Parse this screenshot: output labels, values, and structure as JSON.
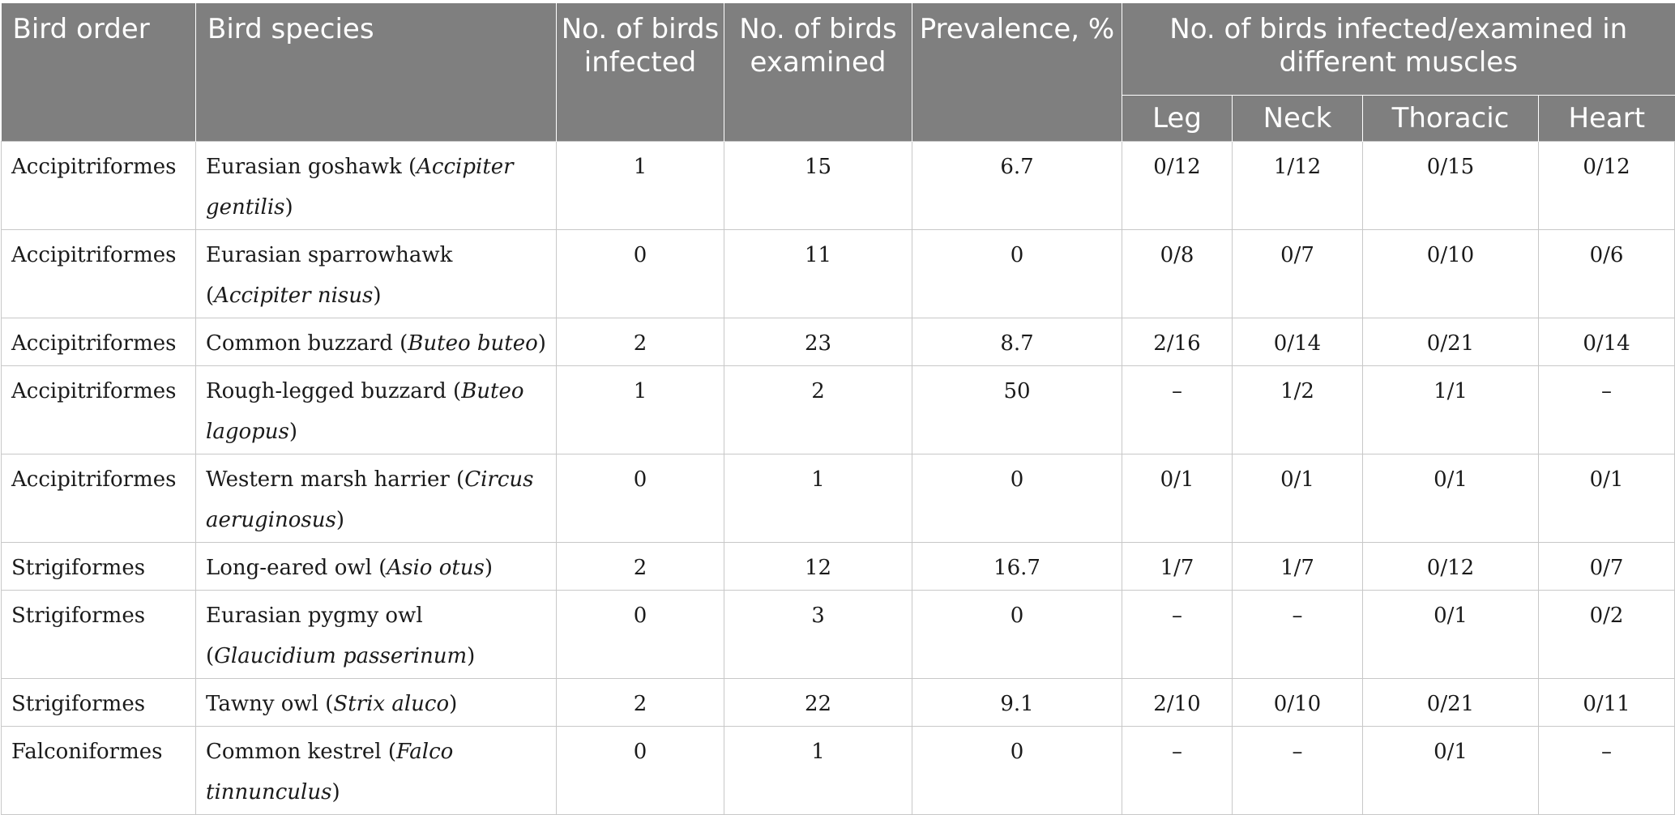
{
  "header": {
    "bird_order": "Bird order",
    "bird_species": "Bird species",
    "no_infected": "No. of birds infected",
    "no_examined": "No. of birds examined",
    "prevalence": "Prevalence, %",
    "muscles_group": "No. of birds infected/examined in different muscles",
    "leg": "Leg",
    "neck": "Neck",
    "thoracic": "Thoracic",
    "heart": "Heart"
  },
  "rows": [
    {
      "order": "Accipitriformes",
      "common": "Eurasian goshawk (",
      "sci": "Accipiter gentilis",
      "close": ")",
      "infected": "1",
      "examined": "15",
      "prevalence": "6.7",
      "leg": "0/12",
      "neck": "1/12",
      "thoracic": "0/15",
      "heart": "0/12"
    },
    {
      "order": "Accipitriformes",
      "common": "Eurasian sparrowhawk (",
      "sci": "Accipiter nisus",
      "close": ")",
      "infected": "0",
      "examined": "11",
      "prevalence": "0",
      "leg": "0/8",
      "neck": "0/7",
      "thoracic": "0/10",
      "heart": "0/6"
    },
    {
      "order": "Accipitriformes",
      "common": "Common buzzard (",
      "sci": "Buteo buteo",
      "close": ")",
      "infected": "2",
      "examined": "23",
      "prevalence": "8.7",
      "leg": "2/16",
      "neck": "0/14",
      "thoracic": "0/21",
      "heart": "0/14"
    },
    {
      "order": "Accipitriformes",
      "common": "Rough-legged buzzard (",
      "sci": "Buteo lagopus",
      "close": ")",
      "infected": "1",
      "examined": "2",
      "prevalence": "50",
      "leg": "–",
      "neck": "1/2",
      "thoracic": "1/1",
      "heart": "–"
    },
    {
      "order": "Accipitriformes",
      "common": "Western marsh harrier (",
      "sci": "Circus aeruginosus",
      "close": ")",
      "infected": "0",
      "examined": "1",
      "prevalence": "0",
      "leg": "0/1",
      "neck": "0/1",
      "thoracic": "0/1",
      "heart": "0/1"
    },
    {
      "order": "Strigiformes",
      "common": "Long-eared owl (",
      "sci": "Asio otus",
      "close": ")",
      "infected": "2",
      "examined": "12",
      "prevalence": "16.7",
      "leg": "1/7",
      "neck": "1/7",
      "thoracic": "0/12",
      "heart": "0/7"
    },
    {
      "order": "Strigiformes",
      "common": "Eurasian pygmy owl (",
      "sci": "Glaucidium passerinum",
      "close": ")",
      "infected": "0",
      "examined": "3",
      "prevalence": "0",
      "leg": "–",
      "neck": "–",
      "thoracic": "0/1",
      "heart": "0/2"
    },
    {
      "order": "Strigiformes",
      "common": "Tawny owl (",
      "sci": "Strix aluco",
      "close": ")",
      "infected": "2",
      "examined": "22",
      "prevalence": "9.1",
      "leg": "2/10",
      "neck": "0/10",
      "thoracic": "0/21",
      "heart": "0/11"
    },
    {
      "order": "Falconiformes",
      "common": "Common kestrel (",
      "sci": "Falco tinnunculus",
      "close": ")",
      "infected": "0",
      "examined": "1",
      "prevalence": "0",
      "leg": "–",
      "neck": "–",
      "thoracic": "0/1",
      "heart": "–"
    }
  ]
}
